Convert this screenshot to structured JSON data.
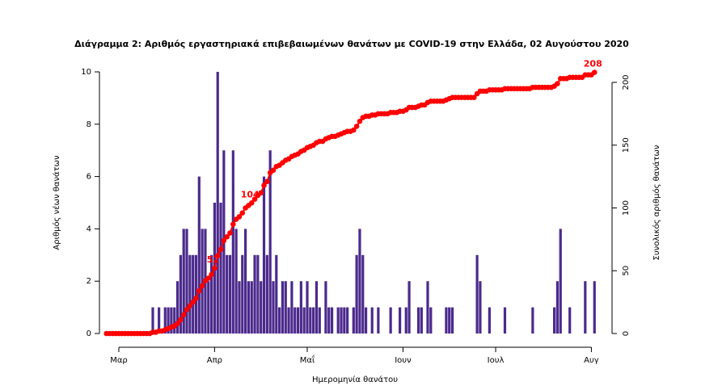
{
  "chart_data": {
    "type": "combo",
    "title": "Διάγραμμα 2: Αριθμός εργαστηριακά επιβεβαιωμένων θανάτων με COVID-19 στην Ελλάδα, 02 Αυγούστου 2020",
    "xlabel": "Ημερομηνία θανάτου",
    "ylabel": "Αριθμός νέων θανάτων",
    "y2label": "Συνολικός αριθμός θανάτων",
    "categories": [
      null,
      null,
      null,
      null,
      "Μαρ",
      null,
      null,
      null,
      null,
      null,
      null,
      null,
      null,
      null,
      null,
      null,
      null,
      null,
      null,
      null,
      null,
      null,
      null,
      null,
      null,
      null,
      null,
      null,
      null,
      null,
      null,
      null,
      null,
      null,
      null,
      "Απρ",
      null,
      null,
      null,
      null,
      null,
      null,
      null,
      null,
      null,
      null,
      null,
      null,
      null,
      null,
      null,
      null,
      null,
      null,
      null,
      null,
      null,
      null,
      null,
      null,
      null,
      null,
      null,
      null,
      null,
      "Μαΐ",
      null,
      null,
      null,
      null,
      null,
      null,
      null,
      null,
      null,
      null,
      null,
      null,
      null,
      null,
      null,
      null,
      null,
      null,
      null,
      null,
      null,
      null,
      null,
      null,
      null,
      null,
      null,
      null,
      null,
      null,
      "Ιουν",
      null,
      null,
      null,
      null,
      null,
      null,
      null,
      null,
      null,
      null,
      null,
      null,
      null,
      null,
      null,
      null,
      null,
      null,
      null,
      null,
      null,
      null,
      null,
      null,
      null,
      null,
      null,
      null,
      null,
      "Ιουλ",
      null,
      null,
      null,
      null,
      null,
      null,
      null,
      null,
      null,
      null,
      null,
      null,
      null,
      null,
      null,
      null,
      null,
      null,
      null,
      null,
      null,
      null,
      null,
      null,
      null,
      null,
      null,
      null,
      null,
      null,
      "Αυγ",
      null
    ],
    "ylim": [
      0,
      10
    ],
    "yticks": [
      0,
      2,
      4,
      6,
      8,
      10
    ],
    "y2lim": [
      0,
      200
    ],
    "y2ticks": [
      0,
      50,
      100,
      150,
      200
    ],
    "series": [
      {
        "type": "bar",
        "color": "#4b2a8c",
        "values": [
          0,
          0,
          0,
          0,
          0,
          0,
          0,
          0,
          0,
          0,
          0,
          0,
          0,
          0,
          0,
          1,
          0,
          1,
          0,
          1,
          1,
          1,
          1,
          2,
          3,
          4,
          4,
          3,
          3,
          3,
          6,
          4,
          4,
          2,
          3,
          5,
          10,
          5,
          7,
          3,
          3,
          7,
          4,
          2,
          3,
          4,
          2,
          2,
          3,
          3,
          2,
          6,
          3,
          7,
          2,
          3,
          1,
          2,
          2,
          1,
          2,
          1,
          1,
          2,
          1,
          2,
          1,
          1,
          2,
          1,
          0,
          2,
          1,
          1,
          0,
          1,
          1,
          1,
          1,
          0,
          1,
          3,
          4,
          3,
          1,
          0,
          1,
          0,
          1,
          0,
          0,
          0,
          1,
          0,
          0,
          1,
          0,
          1,
          2,
          0,
          0,
          1,
          1,
          0,
          2,
          1,
          0,
          0,
          0,
          0,
          1,
          1,
          1,
          0,
          0,
          0,
          0,
          0,
          0,
          0,
          3,
          2,
          0,
          0,
          1,
          0,
          0,
          0,
          0,
          1,
          0,
          0,
          0,
          0,
          0,
          0,
          0,
          0,
          1,
          0,
          0,
          0,
          0,
          0,
          0,
          1,
          2,
          4,
          0,
          0,
          1,
          0,
          0,
          0,
          0,
          2,
          0,
          0,
          2
        ]
      },
      {
        "type": "line",
        "color": "#ff0000",
        "axis": "y2",
        "values": [
          0,
          0,
          0,
          0,
          0,
          0,
          0,
          0,
          0,
          0,
          0,
          0,
          0,
          0,
          0,
          1,
          1,
          2,
          2,
          3,
          4,
          5,
          6,
          8,
          11,
          15,
          19,
          22,
          25,
          28,
          34,
          38,
          42,
          44,
          47,
          52,
          62,
          67,
          74,
          77,
          80,
          87,
          91,
          93,
          96,
          100,
          102,
          104,
          107,
          110,
          112,
          118,
          121,
          128,
          130,
          133,
          134,
          136,
          138,
          139,
          141,
          142,
          143,
          145,
          146,
          148,
          149,
          150,
          152,
          153,
          153,
          155,
          156,
          157,
          157,
          158,
          159,
          160,
          161,
          161,
          162,
          165,
          169,
          172,
          173,
          173,
          174,
          174,
          175,
          175,
          175,
          175,
          176,
          176,
          176,
          177,
          177,
          178,
          180,
          180,
          180,
          181,
          182,
          182,
          184,
          185,
          185,
          185,
          185,
          185,
          186,
          187,
          188,
          188,
          188,
          188,
          188,
          188,
          188,
          188,
          191,
          193,
          193,
          193,
          194,
          194,
          194,
          194,
          194,
          195,
          195,
          195,
          195,
          195,
          195,
          195,
          195,
          195,
          196,
          196,
          196,
          196,
          196,
          196,
          196,
          197,
          199,
          203,
          203,
          203,
          204,
          204,
          204,
          204,
          204,
          206,
          206,
          206,
          208
        ],
        "value_labels": [
          null,
          null,
          null,
          null,
          null,
          null,
          null,
          null,
          null,
          null,
          null,
          null,
          null,
          null,
          null,
          null,
          null,
          null,
          null,
          null,
          null,
          null,
          null,
          null,
          null,
          null,
          null,
          null,
          null,
          null,
          null,
          null,
          null,
          null,
          null,
          "52",
          null,
          null,
          null,
          null,
          null,
          null,
          null,
          null,
          null,
          null,
          null,
          "104",
          null,
          null,
          null,
          null,
          null,
          null,
          null,
          null,
          null,
          null,
          null,
          null,
          null,
          null,
          null,
          null,
          null,
          null,
          null,
          null,
          null,
          null,
          null,
          null,
          null,
          null,
          null,
          null,
          null,
          null,
          null,
          null,
          null,
          null,
          null,
          null,
          null,
          null,
          null,
          null,
          null,
          null,
          null,
          null,
          null,
          null,
          null,
          null,
          null,
          null,
          null,
          null,
          null,
          null,
          null,
          null,
          null,
          null,
          null,
          null,
          null,
          null,
          null,
          null,
          null,
          null,
          null,
          null,
          null,
          null,
          null,
          null,
          null,
          null,
          null,
          null,
          null,
          null,
          null,
          null,
          null,
          null,
          null,
          null,
          null,
          null,
          null,
          null,
          null,
          null,
          null,
          null,
          null,
          null,
          null,
          null,
          null,
          null,
          null,
          null,
          null,
          null,
          null,
          null,
          null,
          null,
          null,
          null,
          null,
          null,
          "208"
        ]
      }
    ]
  }
}
